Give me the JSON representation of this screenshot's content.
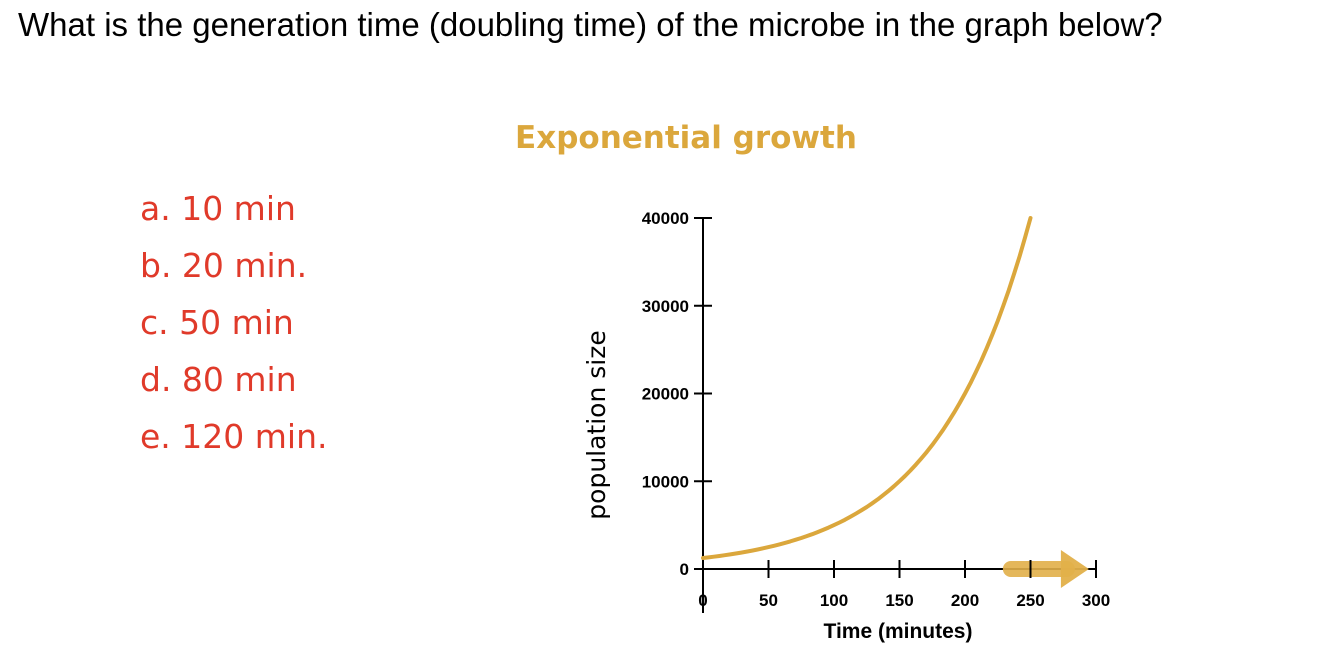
{
  "question": "What is the generation time (doubling time) of the microbe in the graph below?",
  "options": [
    {
      "label": "a. 10 min"
    },
    {
      "label": "b. 20 min."
    },
    {
      "label": "c. 50 min"
    },
    {
      "label": "d. 80 min"
    },
    {
      "label": "e. 120 min."
    }
  ],
  "colors": {
    "curve": "#dba73c",
    "options_text": "#e03a2a",
    "arrow": "#e2b04a"
  },
  "chart_data": {
    "type": "line",
    "title": "Exponential growth",
    "xlabel": "Time (minutes)",
    "ylabel": "population size",
    "xlim": [
      0,
      300
    ],
    "ylim": [
      0,
      40000
    ],
    "x_ticks": [
      0,
      50,
      100,
      150,
      200,
      250,
      300
    ],
    "x_tick_labels": [
      "0",
      "50",
      "100",
      "150",
      "200",
      "250",
      "300"
    ],
    "y_ticks": [
      0,
      10000,
      20000,
      30000,
      40000
    ],
    "y_tick_labels": [
      "0",
      "10000",
      "20000",
      "30000",
      "40000"
    ],
    "grid": false,
    "series": [
      {
        "x": [
          0,
          50,
          100,
          150,
          200,
          250
        ],
        "y": [
          1250,
          2500,
          5000,
          10000,
          20000,
          40000
        ]
      }
    ],
    "annotations": [
      {
        "type": "arrow",
        "x_from": 235,
        "x_to": 290,
        "y": 0
      }
    ]
  }
}
